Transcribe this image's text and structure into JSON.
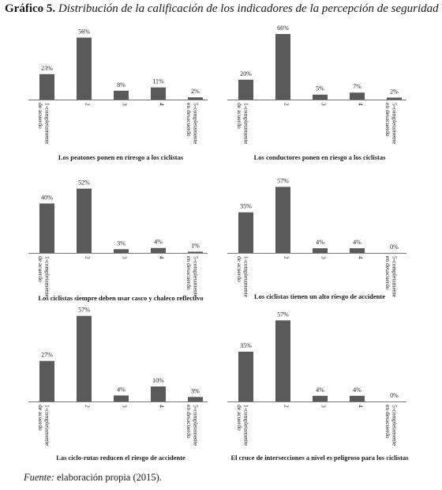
{
  "figure": {
    "title_prefix": "Gráfico 5.",
    "title_text": "Distribución de la calificación de los indicadores de la percepción de seguridad",
    "source_label": "Fuente:",
    "source_text": "elaboración propia (2015)."
  },
  "colors": {
    "bar": "#5a5a5a",
    "axis": "#777777"
  },
  "chart_data": [
    {
      "type": "bar",
      "title": "Los peatones ponen en riresgo a los ciclistas",
      "categories": [
        "1-completamente de acuerdo",
        "2",
        "3",
        "4",
        "5-completamente en desacuerdo"
      ],
      "values": [
        23,
        56,
        8,
        11,
        2
      ],
      "data_labels": [
        "23%",
        "56%",
        "8%",
        "11%",
        "2%"
      ],
      "ylim": [
        0,
        60
      ]
    },
    {
      "type": "bar",
      "title": "Los conductores ponen en riesgo a los ciclistas",
      "categories": [
        "1-completamente de acuerdo",
        "2",
        "3",
        "4",
        "5-completamente en desacuerdo"
      ],
      "values": [
        20,
        66,
        5,
        7,
        2
      ],
      "data_labels": [
        "20%",
        "66%",
        "5%",
        "7%",
        "2%"
      ],
      "ylim": [
        0,
        70
      ]
    },
    {
      "type": "bar",
      "title": "Los ciclistas siempre deben usar casco y chaleco reflectivo",
      "categories": [
        "1-completamente de acuerdo",
        "2",
        "3",
        "4",
        "5-completamente en desacuerdo"
      ],
      "values": [
        40,
        52,
        3,
        4,
        1
      ],
      "data_labels": [
        "40%",
        "52%",
        "3%",
        "4%",
        "1%"
      ],
      "ylim": [
        0,
        55
      ]
    },
    {
      "type": "bar",
      "title": "Los ciclistas tienen un alto riesgo de accidente",
      "categories": [
        "1-completamente de acuerdo",
        "2",
        "3",
        "4",
        "5-completamente en desacuerdo"
      ],
      "values": [
        35,
        57,
        4,
        4,
        0
      ],
      "data_labels": [
        "35%",
        "57%",
        "4%",
        "4%",
        "0%"
      ],
      "ylim": [
        0,
        60
      ]
    },
    {
      "type": "bar",
      "title": "Las ciclo-rutas reducen el riesgo de accidente",
      "categories": [
        "1-completamente de acuerdo",
        "2",
        "3",
        "4",
        "5-completamente en desacuerdo"
      ],
      "values": [
        27,
        57,
        4,
        10,
        3
      ],
      "data_labels": [
        "27%",
        "57%",
        "4%",
        "10%",
        "3%"
      ],
      "ylim": [
        0,
        60
      ]
    },
    {
      "type": "bar",
      "title": "El cruce de intersecciones a nivel es peligroso para los ciclistas",
      "categories": [
        "1-completamente de acuerdo",
        "2",
        "3",
        "4",
        "5-completamente en desacuerdo"
      ],
      "values": [
        35,
        57,
        4,
        4,
        0
      ],
      "data_labels": [
        "35%",
        "57%",
        "4%",
        "4%",
        "0%"
      ],
      "ylim": [
        0,
        60
      ]
    }
  ]
}
